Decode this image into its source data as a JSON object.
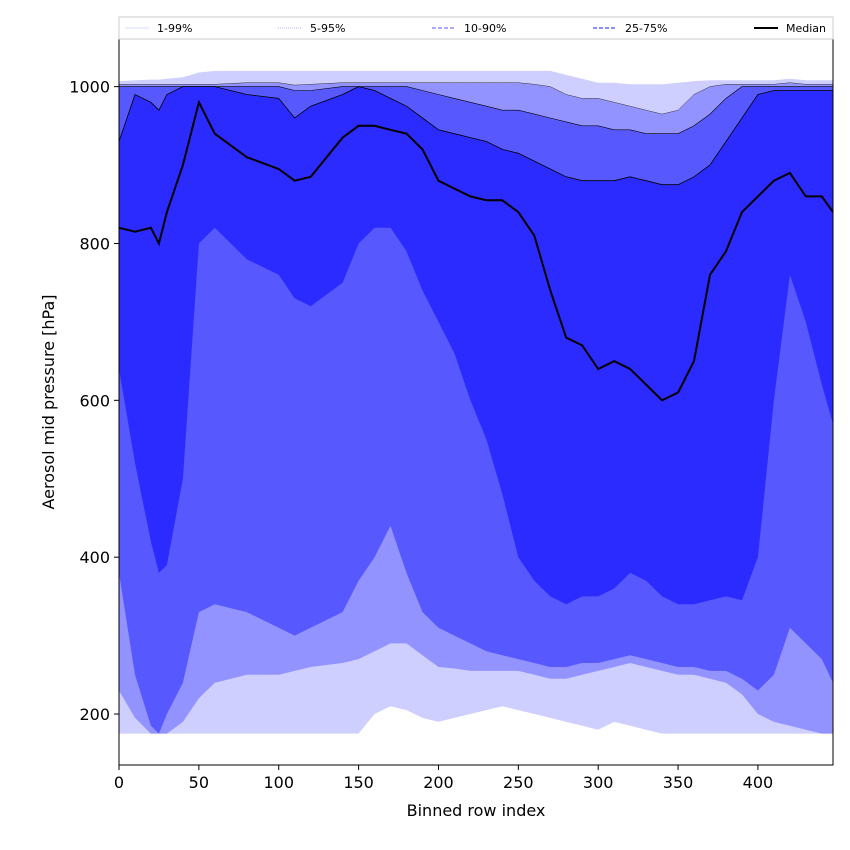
{
  "chart_data": {
    "type": "area",
    "xlabel": "Binned row index",
    "ylabel": "Aerosol mid pressure [hPa]",
    "xlim": [
      0,
      447
    ],
    "ylim": [
      135,
      1062
    ],
    "xticks": [
      0,
      50,
      100,
      150,
      200,
      250,
      300,
      350,
      400
    ],
    "yticks": [
      200,
      400,
      600,
      800,
      1000
    ],
    "grid": false,
    "legend_placement": "top (horizontal, above plot)",
    "legend": [
      {
        "label": "1-99%",
        "color": "#d8d8ff",
        "style": "thin-solid"
      },
      {
        "label": "5-95%",
        "color": "#9a9aff",
        "style": "thin-dotted"
      },
      {
        "label": "10-90%",
        "color": "#7a7aff",
        "style": "dashed"
      },
      {
        "label": "25-75%",
        "color": "#4a4aff",
        "style": "dashed"
      },
      {
        "label": "Median",
        "color": "#000000",
        "style": "solid-thick"
      }
    ],
    "colors": {
      "band_1_99": "#cfcfff",
      "band_5_95": "#9393ff",
      "band_10_90": "#5858ff",
      "band_25_75": "#2b2bff",
      "median": "#000000"
    },
    "x": [
      0,
      10,
      20,
      25,
      30,
      40,
      50,
      60,
      80,
      100,
      110,
      120,
      140,
      150,
      160,
      170,
      180,
      190,
      200,
      210,
      220,
      230,
      240,
      250,
      260,
      270,
      280,
      290,
      300,
      310,
      320,
      330,
      340,
      350,
      360,
      370,
      380,
      390,
      400,
      410,
      420,
      430,
      440,
      447
    ],
    "series": [
      {
        "name": "Median",
        "values": [
          820,
          815,
          820,
          800,
          840,
          900,
          980,
          940,
          910,
          895,
          880,
          885,
          935,
          950,
          950,
          945,
          940,
          920,
          880,
          870,
          860,
          855,
          855,
          840,
          810,
          740,
          680,
          670,
          640,
          650,
          640,
          620,
          600,
          610,
          650,
          760,
          790,
          840,
          860,
          880,
          890,
          860,
          860,
          840
        ]
      },
      {
        "name": "1%",
        "values": [
          175,
          175,
          175,
          175,
          175,
          175,
          175,
          175,
          175,
          175,
          175,
          175,
          175,
          175,
          200,
          210,
          205,
          195,
          190,
          195,
          200,
          205,
          210,
          205,
          200,
          195,
          190,
          185,
          180,
          190,
          185,
          180,
          175,
          175,
          175,
          175,
          175,
          175,
          175,
          175,
          175,
          175,
          175,
          175
        ]
      },
      {
        "name": "5%",
        "values": [
          230,
          195,
          175,
          175,
          175,
          190,
          220,
          240,
          250,
          250,
          255,
          260,
          265,
          270,
          280,
          290,
          290,
          275,
          260,
          258,
          255,
          255,
          255,
          255,
          250,
          245,
          245,
          250,
          255,
          260,
          265,
          260,
          255,
          250,
          250,
          245,
          240,
          225,
          200,
          190,
          185,
          180,
          175,
          175
        ]
      },
      {
        "name": "10%",
        "values": [
          380,
          250,
          185,
          175,
          200,
          240,
          330,
          340,
          330,
          310,
          300,
          310,
          330,
          370,
          400,
          440,
          380,
          330,
          310,
          300,
          290,
          280,
          275,
          270,
          265,
          260,
          260,
          265,
          265,
          270,
          275,
          270,
          265,
          260,
          260,
          255,
          255,
          245,
          230,
          250,
          310,
          290,
          270,
          240
        ]
      },
      {
        "name": "25%",
        "values": [
          640,
          520,
          420,
          380,
          390,
          500,
          800,
          820,
          780,
          760,
          730,
          720,
          750,
          800,
          820,
          820,
          790,
          740,
          700,
          660,
          600,
          550,
          480,
          400,
          370,
          350,
          340,
          350,
          350,
          360,
          380,
          370,
          350,
          340,
          340,
          345,
          350,
          345,
          400,
          600,
          760,
          700,
          620,
          570
        ]
      },
      {
        "name": "75%",
        "values": [
          930,
          990,
          980,
          970,
          990,
          1000,
          1000,
          1000,
          990,
          985,
          960,
          975,
          990,
          1000,
          995,
          985,
          975,
          960,
          945,
          940,
          935,
          930,
          920,
          915,
          905,
          895,
          885,
          880,
          880,
          880,
          885,
          880,
          875,
          875,
          885,
          900,
          930,
          960,
          990,
          995,
          995,
          995,
          995,
          995
        ]
      },
      {
        "name": "90%",
        "values": [
          1000,
          1000,
          1000,
          1000,
          1000,
          1000,
          1000,
          1000,
          1000,
          1000,
          995,
          995,
          1000,
          1000,
          1000,
          1000,
          1000,
          995,
          990,
          985,
          980,
          975,
          970,
          970,
          965,
          960,
          955,
          950,
          950,
          945,
          945,
          940,
          940,
          940,
          950,
          965,
          985,
          1000,
          1000,
          1000,
          1000,
          1000,
          1000,
          1000
        ]
      },
      {
        "name": "95%",
        "values": [
          1003,
          1003,
          1003,
          1003,
          1003,
          1003,
          1003,
          1003,
          1005,
          1005,
          1002,
          1003,
          1005,
          1005,
          1005,
          1005,
          1005,
          1005,
          1005,
          1005,
          1005,
          1005,
          1005,
          1005,
          1003,
          1000,
          990,
          985,
          985,
          980,
          975,
          970,
          965,
          970,
          990,
          1000,
          1003,
          1003,
          1003,
          1003,
          1005,
          1003,
          1003,
          1003
        ]
      },
      {
        "name": "99%",
        "values": [
          1007,
          1008,
          1009,
          1009,
          1010,
          1012,
          1018,
          1020,
          1020,
          1020,
          1020,
          1020,
          1020,
          1020,
          1020,
          1020,
          1020,
          1020,
          1020,
          1020,
          1020,
          1020,
          1020,
          1020,
          1020,
          1020,
          1015,
          1010,
          1005,
          1005,
          1003,
          1003,
          1003,
          1005,
          1007,
          1008,
          1008,
          1008,
          1008,
          1008,
          1010,
          1008,
          1008,
          1008
        ]
      }
    ]
  }
}
